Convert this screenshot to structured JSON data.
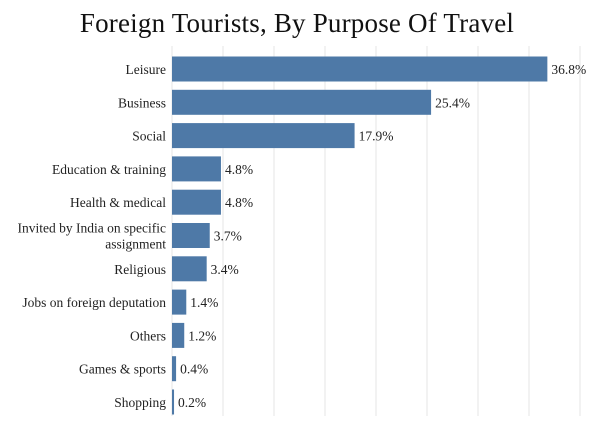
{
  "chart_data": {
    "type": "bar",
    "orientation": "horizontal",
    "title": "Foreign Tourists, By Purpose Of Travel",
    "categories": [
      "Leisure",
      "Business",
      "Social",
      "Education & training",
      "Health & medical",
      "Invited by India on specific assignment",
      "Religious",
      "Jobs on foreign deputation",
      "Others",
      "Games & sports",
      "Shopping"
    ],
    "category_lines": [
      [
        "Leisure"
      ],
      [
        "Business"
      ],
      [
        "Social"
      ],
      [
        "Education & training"
      ],
      [
        "Health & medical"
      ],
      [
        "Invited by India on specific",
        "assignment"
      ],
      [
        "Religious"
      ],
      [
        "Jobs on foreign deputation"
      ],
      [
        "Others"
      ],
      [
        "Games & sports"
      ],
      [
        "Shopping"
      ]
    ],
    "values": [
      36.8,
      25.4,
      17.9,
      4.8,
      4.8,
      3.7,
      3.4,
      1.4,
      1.2,
      0.4,
      0.2
    ],
    "value_labels": [
      "36.8%",
      "25.4%",
      "17.9%",
      "4.8%",
      "4.8%",
      "3.7%",
      "3.4%",
      "1.4%",
      "1.2%",
      "0.4%",
      "0.2%"
    ],
    "xlim": [
      0,
      40
    ],
    "grid": true,
    "bar_color": "#4e79a7",
    "grid_color": "#e6e6e6"
  }
}
